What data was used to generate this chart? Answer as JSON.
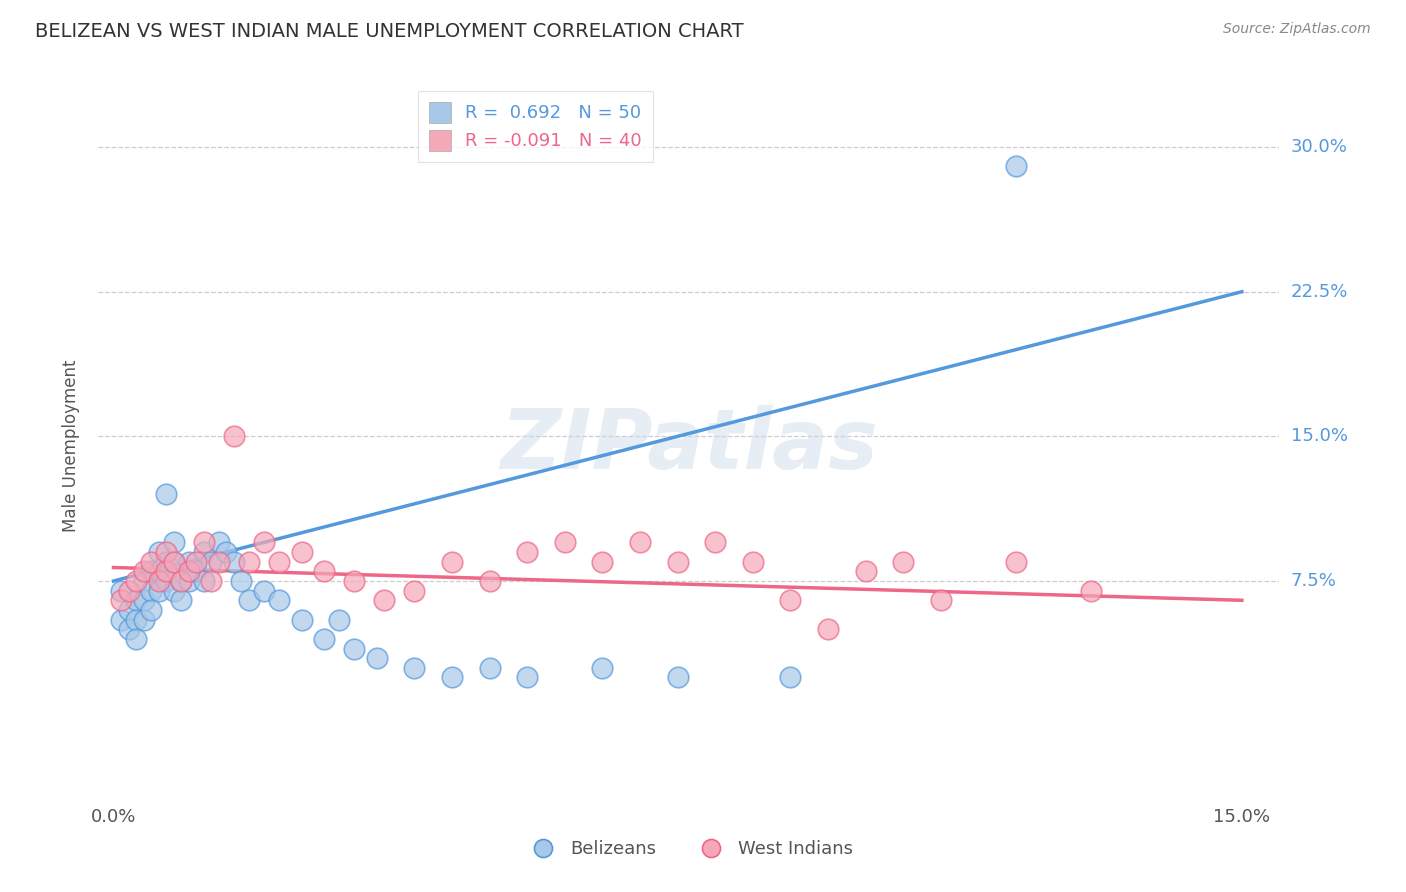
{
  "title": "BELIZEAN VS WEST INDIAN MALE UNEMPLOYMENT CORRELATION CHART",
  "source": "Source: ZipAtlas.com",
  "ylabel": "Male Unemployment",
  "xlim": [
    -0.002,
    0.155
  ],
  "ylim": [
    -0.04,
    0.33
  ],
  "yticks": [
    0.075,
    0.15,
    0.225,
    0.3
  ],
  "ytick_labels": [
    "7.5%",
    "15.0%",
    "22.5%",
    "30.0%"
  ],
  "xticks": [
    0.0,
    0.15
  ],
  "xtick_labels": [
    "0.0%",
    "15.0%"
  ],
  "grid_color": "#c8c8c8",
  "bg_color": "#ffffff",
  "belizean_color": "#a8c8e8",
  "westindian_color": "#f4a8b8",
  "belizean_line_color": "#5599dd",
  "westindian_line_color": "#ee6688",
  "R_belizean": 0.692,
  "N_belizean": 50,
  "R_westindian": -0.091,
  "N_westindian": 40,
  "watermark": "ZIPatlas",
  "legend_label_belizean": "Belizeans",
  "legend_label_westindian": "West Indians",
  "belizean_x": [
    0.001,
    0.001,
    0.002,
    0.002,
    0.003,
    0.003,
    0.003,
    0.004,
    0.004,
    0.004,
    0.005,
    0.005,
    0.005,
    0.006,
    0.006,
    0.006,
    0.007,
    0.007,
    0.007,
    0.008,
    0.008,
    0.008,
    0.009,
    0.009,
    0.01,
    0.01,
    0.011,
    0.012,
    0.012,
    0.013,
    0.014,
    0.015,
    0.016,
    0.017,
    0.018,
    0.02,
    0.022,
    0.025,
    0.028,
    0.03,
    0.032,
    0.035,
    0.04,
    0.045,
    0.05,
    0.055,
    0.065,
    0.075,
    0.09,
    0.12
  ],
  "belizean_y": [
    0.07,
    0.055,
    0.06,
    0.05,
    0.065,
    0.055,
    0.045,
    0.075,
    0.065,
    0.055,
    0.08,
    0.07,
    0.06,
    0.09,
    0.08,
    0.07,
    0.12,
    0.085,
    0.075,
    0.095,
    0.085,
    0.07,
    0.075,
    0.065,
    0.085,
    0.075,
    0.08,
    0.09,
    0.075,
    0.085,
    0.095,
    0.09,
    0.085,
    0.075,
    0.065,
    0.07,
    0.065,
    0.055,
    0.045,
    0.055,
    0.04,
    0.035,
    0.03,
    0.025,
    0.03,
    0.025,
    0.03,
    0.025,
    0.025,
    0.29
  ],
  "westindian_x": [
    0.001,
    0.002,
    0.003,
    0.004,
    0.005,
    0.006,
    0.007,
    0.007,
    0.008,
    0.009,
    0.01,
    0.011,
    0.012,
    0.013,
    0.014,
    0.016,
    0.018,
    0.02,
    0.022,
    0.025,
    0.028,
    0.032,
    0.036,
    0.04,
    0.045,
    0.05,
    0.055,
    0.06,
    0.065,
    0.07,
    0.075,
    0.08,
    0.085,
    0.09,
    0.095,
    0.1,
    0.105,
    0.11,
    0.12,
    0.13
  ],
  "westindian_y": [
    0.065,
    0.07,
    0.075,
    0.08,
    0.085,
    0.075,
    0.09,
    0.08,
    0.085,
    0.075,
    0.08,
    0.085,
    0.095,
    0.075,
    0.085,
    0.15,
    0.085,
    0.095,
    0.085,
    0.09,
    0.08,
    0.075,
    0.065,
    0.07,
    0.085,
    0.075,
    0.09,
    0.095,
    0.085,
    0.095,
    0.085,
    0.095,
    0.085,
    0.065,
    0.05,
    0.08,
    0.085,
    0.065,
    0.085,
    0.07
  ],
  "blue_line_x0": 0.0,
  "blue_line_y0": 0.075,
  "blue_line_x1": 0.15,
  "blue_line_y1": 0.225,
  "pink_line_x0": 0.0,
  "pink_line_y0": 0.082,
  "pink_line_x1": 0.15,
  "pink_line_y1": 0.065
}
